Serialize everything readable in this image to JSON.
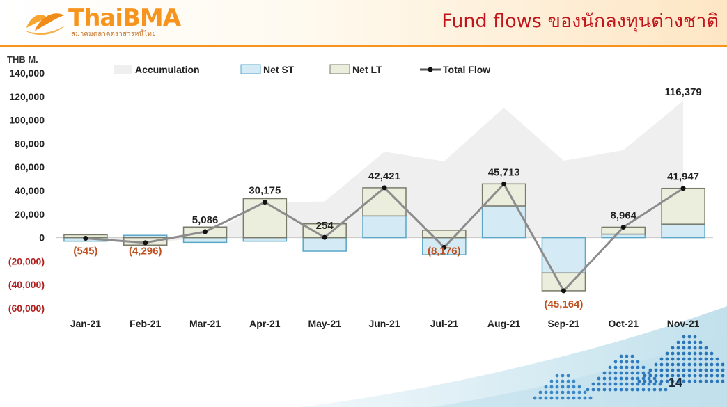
{
  "header": {
    "title": "Fund flows ของนักลงทุนต่างชาติ",
    "logo_text": "ThaiBMA",
    "logo_subtitle": "สมาคมตลาดตราสารหนี้ไทย"
  },
  "page_number": "14",
  "colors": {
    "accent": "#f7941d",
    "title": "#c0161b",
    "net_st_fill": "#d4eaf4",
    "net_st_stroke": "#5aa7c7",
    "net_lt_fill": "#eceedd",
    "net_lt_stroke": "#7a7a6a",
    "total_line": "#8c8c8c",
    "accumulation": "#efefef",
    "negative_label": "#c0501f"
  },
  "chart_data": {
    "type": "bar",
    "ylabel": "THB M.",
    "ylim": [
      -60000,
      140000
    ],
    "yticks": [
      140000,
      120000,
      100000,
      80000,
      60000,
      40000,
      20000,
      0,
      -20000,
      -40000,
      -60000
    ],
    "ytick_labels": [
      "140,000",
      "120,000",
      "100,000",
      "80,000",
      "60,000",
      "40,000",
      "20,000",
      "0",
      "(20,000)",
      "(40,000)",
      "(60,000)"
    ],
    "legend_position": "top",
    "categories": [
      "Jan-21",
      "Feb-21",
      "Mar-21",
      "Apr-21",
      "May-21",
      "Jun-21",
      "Jul-21",
      "Aug-21",
      "Sep-21",
      "Oct-21",
      "Nov-21"
    ],
    "series": [
      {
        "name": "Accumulation",
        "type": "area",
        "values": [
          -545,
          -4841,
          245,
          30420,
          30674,
          73095,
          64919,
          110632,
          65468,
          74432,
          116379
        ]
      },
      {
        "name": "Net ST",
        "type": "stacked-bar",
        "values": [
          -3000,
          2000,
          -4000,
          -3000,
          -11500,
          18500,
          -14500,
          27000,
          -30000,
          3000,
          11500
        ]
      },
      {
        "name": "Net LT",
        "type": "stacked-bar",
        "values": [
          2455,
          -6296,
          9086,
          33175,
          11754,
          23921,
          6324,
          18713,
          -15164,
          5964,
          30447
        ]
      },
      {
        "name": "Total Flow",
        "type": "line",
        "values": [
          -545,
          -4296,
          5086,
          30175,
          254,
          42421,
          -8176,
          45713,
          -45164,
          8964,
          41947
        ]
      }
    ],
    "data_labels": [
      {
        "text": "(545)",
        "category": "Jan-21",
        "value": -545,
        "negative": true
      },
      {
        "text": "(4,296)",
        "category": "Feb-21",
        "value": -4296,
        "negative": true
      },
      {
        "text": "5,086",
        "category": "Mar-21",
        "value": 5086,
        "negative": false
      },
      {
        "text": "30,175",
        "category": "Apr-21",
        "value": 30175,
        "negative": false
      },
      {
        "text": "254",
        "category": "May-21",
        "value": 254,
        "negative": false
      },
      {
        "text": "42,421",
        "category": "Jun-21",
        "value": 42421,
        "negative": false
      },
      {
        "text": "(8,176)",
        "category": "Jul-21",
        "value": -8176,
        "negative": true
      },
      {
        "text": "45,713",
        "category": "Aug-21",
        "value": 45713,
        "negative": false
      },
      {
        "text": "(45,164)",
        "category": "Sep-21",
        "value": -45164,
        "negative": true
      },
      {
        "text": "8,964",
        "category": "Oct-21",
        "value": 8964,
        "negative": false
      },
      {
        "text": "41,947",
        "category": "Nov-21",
        "value": 41947,
        "negative": false
      },
      {
        "text": "116,379",
        "category": "Nov-21",
        "value": 116379,
        "negative": false,
        "series": "Accumulation"
      }
    ]
  }
}
